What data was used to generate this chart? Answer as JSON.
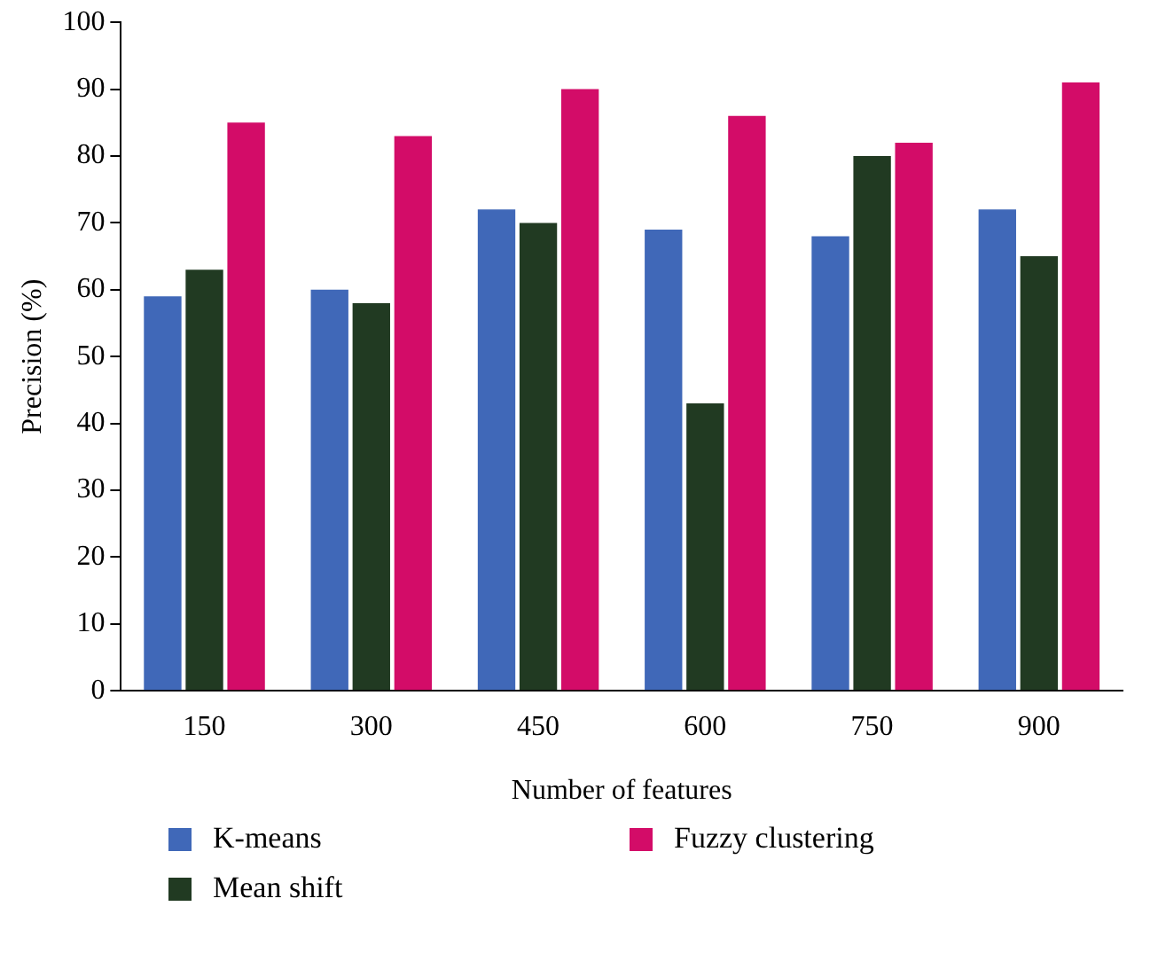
{
  "chart_data": {
    "type": "bar",
    "xlabel": "Number of features",
    "ylabel": "Precision (%)",
    "categories": [
      "150",
      "300",
      "450",
      "600",
      "750",
      "900"
    ],
    "series": [
      {
        "name": "K-means",
        "color": "#4068b8",
        "values": [
          59,
          60,
          72,
          69,
          68,
          72
        ]
      },
      {
        "name": "Mean shift",
        "color": "#213a22",
        "values": [
          63,
          58,
          70,
          43,
          80,
          65
        ]
      },
      {
        "name": "Fuzzy clustering",
        "color": "#d30c68",
        "values": [
          85,
          83,
          90,
          86,
          82,
          91
        ]
      }
    ],
    "ylim": [
      0,
      100
    ],
    "yticks": [
      0,
      10,
      20,
      30,
      40,
      50,
      60,
      70,
      80,
      90,
      100
    ],
    "grid": false,
    "legend": "bottom"
  }
}
